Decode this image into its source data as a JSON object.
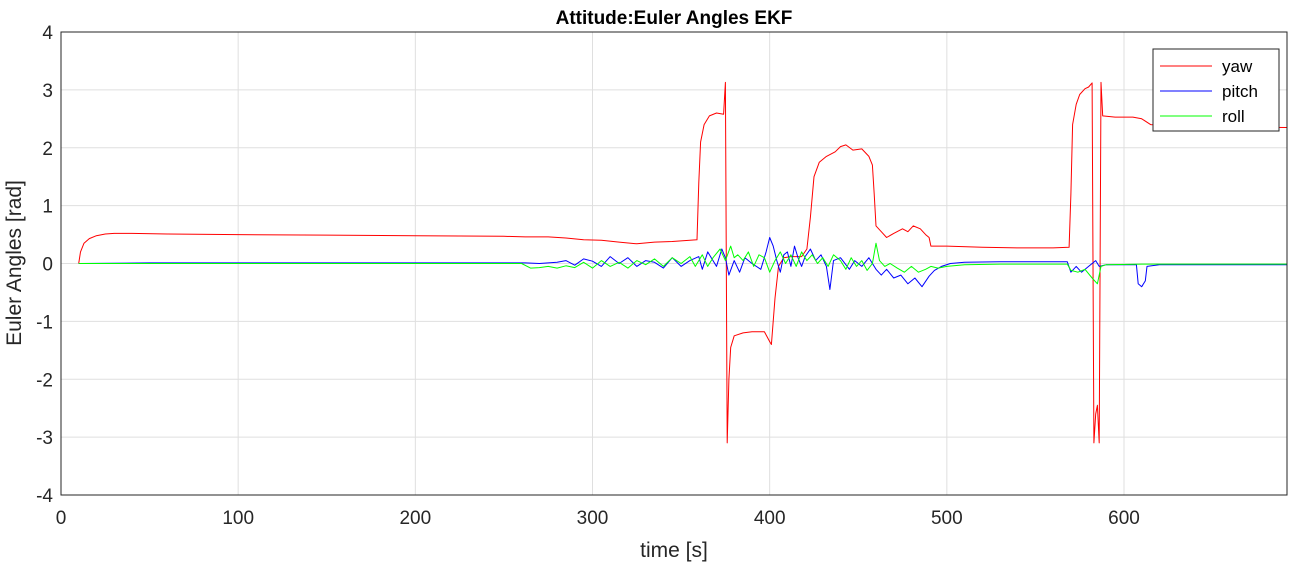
{
  "chart_data": {
    "type": "line",
    "title": "Attitude:Euler Angles EKF",
    "xlabel": "time [s]",
    "ylabel": "Euler Angles [rad]",
    "xlim": [
      0,
      692
    ],
    "ylim": [
      -4,
      4
    ],
    "xticks": [
      0,
      100,
      200,
      300,
      400,
      500,
      600
    ],
    "yticks": [
      -4,
      -3,
      -2,
      -1,
      0,
      1,
      2,
      3,
      4
    ],
    "xtick_labels": [
      "0",
      "100",
      "200",
      "300",
      "400",
      "500",
      "600"
    ],
    "ytick_labels": [
      "-4",
      "-3",
      "-2",
      "-1",
      "0",
      "1",
      "2",
      "3",
      "4"
    ],
    "grid": true,
    "legend_position": "top-right",
    "series": [
      {
        "name": "yaw",
        "color": "#ff0000",
        "points": [
          [
            10,
            0
          ],
          [
            11,
            0.2
          ],
          [
            13,
            0.35
          ],
          [
            16,
            0.43
          ],
          [
            20,
            0.48
          ],
          [
            25,
            0.51
          ],
          [
            30,
            0.52
          ],
          [
            40,
            0.52
          ],
          [
            60,
            0.51
          ],
          [
            100,
            0.5
          ],
          [
            150,
            0.49
          ],
          [
            200,
            0.48
          ],
          [
            250,
            0.47
          ],
          [
            262,
            0.46
          ],
          [
            275,
            0.46
          ],
          [
            285,
            0.44
          ],
          [
            295,
            0.41
          ],
          [
            305,
            0.4
          ],
          [
            315,
            0.37
          ],
          [
            325,
            0.34
          ],
          [
            335,
            0.37
          ],
          [
            345,
            0.38
          ],
          [
            355,
            0.4
          ],
          [
            359,
            0.41
          ],
          [
            360,
            1.4
          ],
          [
            361,
            2.1
          ],
          [
            363,
            2.4
          ],
          [
            366,
            2.55
          ],
          [
            370,
            2.6
          ],
          [
            374,
            2.58
          ],
          [
            375,
            3.13
          ],
          [
            376,
            -3.1
          ],
          [
            377,
            -2.0
          ],
          [
            378,
            -1.45
          ],
          [
            380,
            -1.25
          ],
          [
            385,
            -1.2
          ],
          [
            390,
            -1.18
          ],
          [
            397,
            -1.18
          ],
          [
            400,
            -1.35
          ],
          [
            401,
            -1.4
          ],
          [
            403,
            -0.6
          ],
          [
            405,
            -0.05
          ],
          [
            408,
            0.1
          ],
          [
            412,
            0.12
          ],
          [
            418,
            0.12
          ],
          [
            421,
            0.25
          ],
          [
            423,
            0.8
          ],
          [
            425,
            1.5
          ],
          [
            428,
            1.75
          ],
          [
            432,
            1.85
          ],
          [
            437,
            1.93
          ],
          [
            440,
            2.02
          ],
          [
            443,
            2.05
          ],
          [
            447,
            1.96
          ],
          [
            452,
            1.98
          ],
          [
            456,
            1.85
          ],
          [
            458,
            1.7
          ],
          [
            459,
            1.2
          ],
          [
            460,
            0.65
          ],
          [
            463,
            0.55
          ],
          [
            466,
            0.45
          ],
          [
            470,
            0.52
          ],
          [
            475,
            0.6
          ],
          [
            478,
            0.55
          ],
          [
            481,
            0.65
          ],
          [
            485,
            0.6
          ],
          [
            488,
            0.5
          ],
          [
            490,
            0.45
          ],
          [
            491,
            0.3
          ],
          [
            500,
            0.3
          ],
          [
            520,
            0.28
          ],
          [
            540,
            0.27
          ],
          [
            560,
            0.27
          ],
          [
            569,
            0.28
          ],
          [
            570,
            1.2
          ],
          [
            571,
            2.4
          ],
          [
            573,
            2.75
          ],
          [
            575,
            2.92
          ],
          [
            578,
            3.02
          ],
          [
            580,
            3.05
          ],
          [
            582,
            3.12
          ],
          [
            583,
            -3.1
          ],
          [
            584,
            -2.6
          ],
          [
            585,
            -2.45
          ],
          [
            586,
            -3.1
          ],
          [
            587,
            3.13
          ],
          [
            588,
            2.55
          ],
          [
            595,
            2.53
          ],
          [
            605,
            2.53
          ],
          [
            610,
            2.5
          ],
          [
            615,
            2.4
          ],
          [
            625,
            2.38
          ],
          [
            640,
            2.37
          ],
          [
            660,
            2.36
          ],
          [
            692,
            2.35
          ]
        ]
      },
      {
        "name": "pitch",
        "color": "#0000ff",
        "points": [
          [
            10,
            0
          ],
          [
            50,
            0.01
          ],
          [
            100,
            0.01
          ],
          [
            150,
            0.01
          ],
          [
            200,
            0.01
          ],
          [
            250,
            0.01
          ],
          [
            262,
            0.01
          ],
          [
            270,
            0
          ],
          [
            280,
            0.02
          ],
          [
            285,
            0.05
          ],
          [
            290,
            -0.03
          ],
          [
            295,
            0.08
          ],
          [
            300,
            0.04
          ],
          [
            305,
            -0.05
          ],
          [
            310,
            0.12
          ],
          [
            315,
            0.0
          ],
          [
            320,
            0.1
          ],
          [
            325,
            -0.05
          ],
          [
            330,
            0.05
          ],
          [
            335,
            0.02
          ],
          [
            340,
            -0.08
          ],
          [
            345,
            0.1
          ],
          [
            350,
            -0.05
          ],
          [
            355,
            0.05
          ],
          [
            360,
            0.12
          ],
          [
            362,
            -0.1
          ],
          [
            365,
            0.2
          ],
          [
            368,
            0.05
          ],
          [
            370,
            -0.05
          ],
          [
            373,
            0.25
          ],
          [
            375,
            0.1
          ],
          [
            377,
            -0.2
          ],
          [
            380,
            0.05
          ],
          [
            383,
            -0.15
          ],
          [
            386,
            0.1
          ],
          [
            390,
            0.0
          ],
          [
            395,
            -0.1
          ],
          [
            398,
            0.2
          ],
          [
            400,
            0.45
          ],
          [
            402,
            0.3
          ],
          [
            404,
            0.05
          ],
          [
            406,
            -0.15
          ],
          [
            408,
            0.15
          ],
          [
            410,
            0.2
          ],
          [
            412,
            -0.05
          ],
          [
            414,
            0.3
          ],
          [
            416,
            0.1
          ],
          [
            418,
            -0.05
          ],
          [
            420,
            0.12
          ],
          [
            423,
            0.25
          ],
          [
            426,
            0.05
          ],
          [
            429,
            0.15
          ],
          [
            432,
            -0.05
          ],
          [
            434,
            -0.45
          ],
          [
            436,
            0.05
          ],
          [
            440,
            0.1
          ],
          [
            445,
            -0.1
          ],
          [
            448,
            0.05
          ],
          [
            452,
            -0.05
          ],
          [
            456,
            0.1
          ],
          [
            460,
            -0.1
          ],
          [
            463,
            -0.2
          ],
          [
            466,
            -0.1
          ],
          [
            470,
            -0.25
          ],
          [
            474,
            -0.2
          ],
          [
            478,
            -0.35
          ],
          [
            482,
            -0.25
          ],
          [
            486,
            -0.4
          ],
          [
            490,
            -0.22
          ],
          [
            493,
            -0.12
          ],
          [
            497,
            -0.05
          ],
          [
            502,
            0.0
          ],
          [
            510,
            0.02
          ],
          [
            530,
            0.03
          ],
          [
            550,
            0.03
          ],
          [
            568,
            0.03
          ],
          [
            570,
            -0.15
          ],
          [
            573,
            -0.05
          ],
          [
            576,
            -0.15
          ],
          [
            580,
            -0.05
          ],
          [
            584,
            0.05
          ],
          [
            586,
            -0.05
          ],
          [
            590,
            -0.02
          ],
          [
            600,
            -0.02
          ],
          [
            607,
            -0.02
          ],
          [
            608,
            -0.35
          ],
          [
            610,
            -0.4
          ],
          [
            612,
            -0.3
          ],
          [
            613,
            -0.05
          ],
          [
            620,
            -0.02
          ],
          [
            650,
            -0.02
          ],
          [
            692,
            -0.02
          ]
        ]
      },
      {
        "name": "roll",
        "color": "#00ff00",
        "points": [
          [
            10,
            0
          ],
          [
            50,
            0
          ],
          [
            100,
            0
          ],
          [
            150,
            0
          ],
          [
            200,
            0
          ],
          [
            250,
            0
          ],
          [
            260,
            0
          ],
          [
            265,
            -0.08
          ],
          [
            270,
            -0.07
          ],
          [
            275,
            -0.05
          ],
          [
            280,
            -0.08
          ],
          [
            285,
            -0.04
          ],
          [
            290,
            -0.07
          ],
          [
            295,
            0.02
          ],
          [
            300,
            -0.08
          ],
          [
            305,
            0.05
          ],
          [
            310,
            -0.05
          ],
          [
            315,
            0.02
          ],
          [
            320,
            -0.08
          ],
          [
            325,
            0.05
          ],
          [
            330,
            -0.02
          ],
          [
            335,
            0.08
          ],
          [
            340,
            -0.05
          ],
          [
            345,
            0.1
          ],
          [
            350,
            0.0
          ],
          [
            355,
            0.12
          ],
          [
            358,
            -0.05
          ],
          [
            362,
            0.15
          ],
          [
            365,
            -0.05
          ],
          [
            368,
            0.1
          ],
          [
            372,
            0.25
          ],
          [
            375,
            0.05
          ],
          [
            378,
            0.3
          ],
          [
            380,
            0.1
          ],
          [
            382,
            0.15
          ],
          [
            385,
            0.05
          ],
          [
            388,
            0.2
          ],
          [
            391,
            -0.05
          ],
          [
            394,
            0.15
          ],
          [
            397,
            0.1
          ],
          [
            400,
            -0.15
          ],
          [
            403,
            0.05
          ],
          [
            406,
            0.2
          ],
          [
            409,
            0.0
          ],
          [
            412,
            0.15
          ],
          [
            415,
            -0.05
          ],
          [
            418,
            0.2
          ],
          [
            421,
            0.05
          ],
          [
            424,
            0.15
          ],
          [
            427,
            0.0
          ],
          [
            430,
            0.1
          ],
          [
            433,
            -0.05
          ],
          [
            436,
            0.15
          ],
          [
            440,
            0.05
          ],
          [
            443,
            -0.1
          ],
          [
            446,
            0.1
          ],
          [
            449,
            -0.05
          ],
          [
            452,
            0.05
          ],
          [
            455,
            -0.12
          ],
          [
            458,
            0.0
          ],
          [
            460,
            0.35
          ],
          [
            462,
            0.05
          ],
          [
            465,
            -0.05
          ],
          [
            468,
            0.0
          ],
          [
            472,
            -0.08
          ],
          [
            476,
            -0.15
          ],
          [
            480,
            -0.05
          ],
          [
            484,
            -0.15
          ],
          [
            488,
            -0.1
          ],
          [
            491,
            -0.05
          ],
          [
            495,
            -0.08
          ],
          [
            500,
            -0.05
          ],
          [
            510,
            -0.02
          ],
          [
            530,
            -0.01
          ],
          [
            568,
            -0.01
          ],
          [
            570,
            -0.12
          ],
          [
            574,
            -0.15
          ],
          [
            578,
            -0.1
          ],
          [
            582,
            -0.25
          ],
          [
            585,
            -0.35
          ],
          [
            587,
            -0.05
          ],
          [
            590,
            -0.02
          ],
          [
            610,
            -0.01
          ],
          [
            650,
            -0.01
          ],
          [
            692,
            -0.01
          ]
        ]
      }
    ]
  }
}
